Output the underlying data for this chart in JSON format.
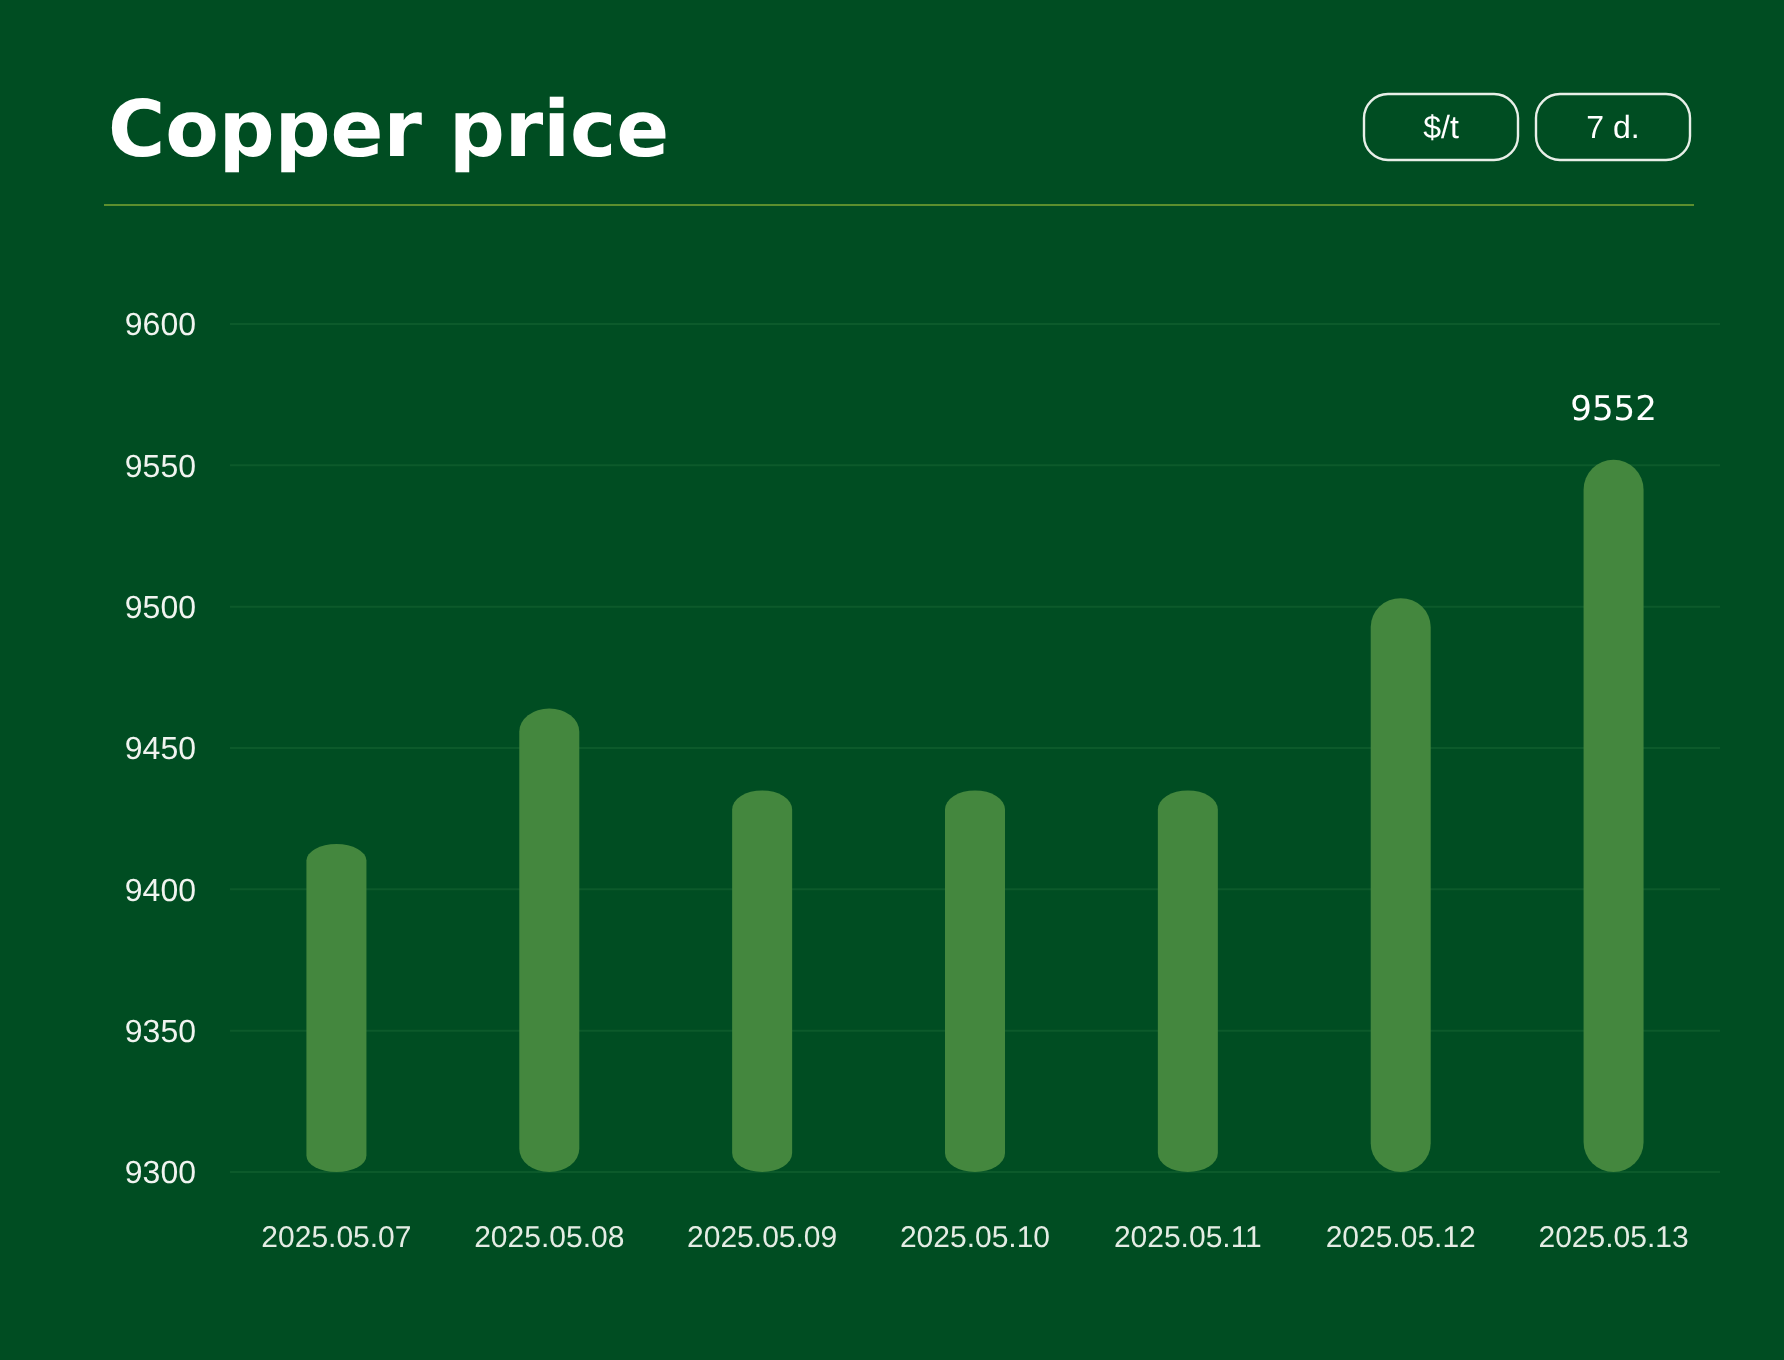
{
  "chart_data": {
    "type": "bar",
    "title": "Copper price",
    "annotations": [
      "$/t",
      "7 d."
    ],
    "categories": [
      "2025.05.07",
      "2025.05.08",
      "2025.05.09",
      "2025.05.10",
      "2025.05.11",
      "2025.05.12",
      "2025.05.13"
    ],
    "values": [
      9416,
      9464,
      9435,
      9435,
      9435,
      9503,
      9552
    ],
    "color": "#44873e",
    "value_labels": [
      null,
      null,
      null,
      null,
      null,
      null,
      "9552"
    ],
    "ylim": [
      9300,
      9600
    ],
    "yticks": [
      9300,
      9350,
      9400,
      9450,
      9500,
      9550,
      9600
    ],
    "grid": "y"
  }
}
